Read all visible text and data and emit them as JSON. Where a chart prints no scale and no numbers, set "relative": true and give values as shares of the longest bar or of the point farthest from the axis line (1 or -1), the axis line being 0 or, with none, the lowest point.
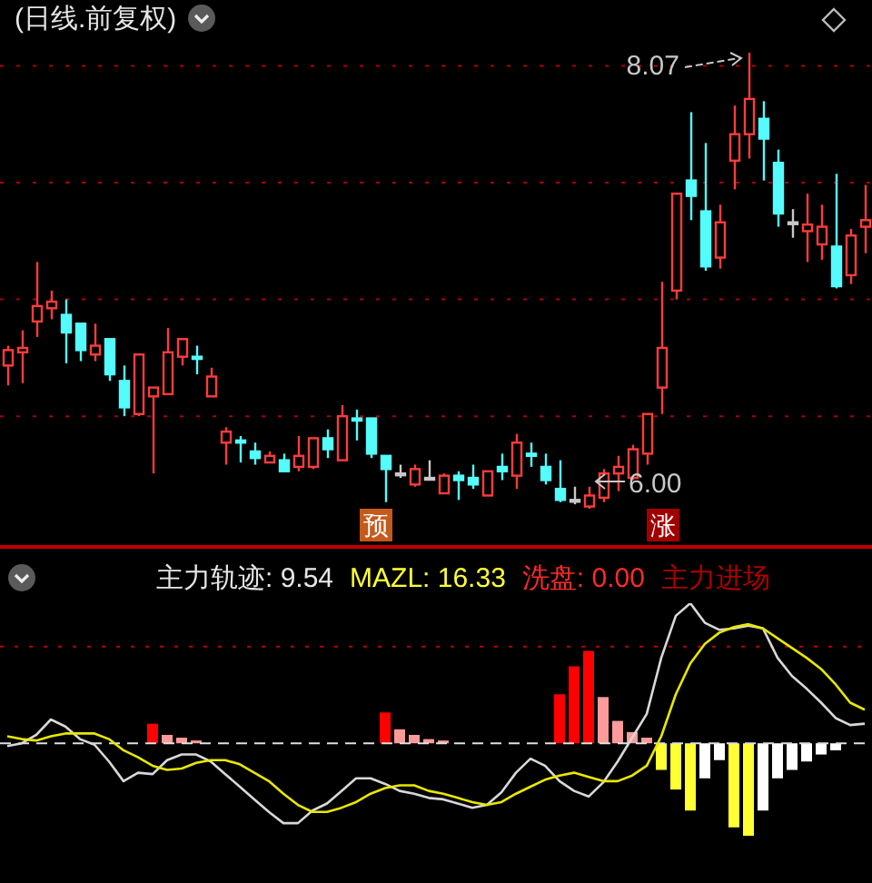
{
  "chart_data": [
    {
      "type": "candlestick",
      "title": "(日线.前复权)",
      "categories": [
        null,
        null,
        null,
        null,
        null,
        null,
        null,
        null,
        null,
        null,
        null,
        null,
        null,
        null,
        null,
        null,
        null,
        null,
        null,
        null,
        null,
        null,
        null,
        null,
        null,
        null,
        null,
        null,
        null,
        null,
        null,
        null,
        null,
        null,
        null,
        null,
        null,
        null,
        null,
        null,
        null,
        null,
        null,
        null,
        null,
        null,
        null,
        null,
        null,
        null,
        null,
        null,
        null,
        null,
        null,
        null,
        null,
        null,
        null,
        null
      ],
      "ohlc": [
        [
          6.65,
          6.74,
          6.56,
          6.72
        ],
        [
          6.71,
          6.81,
          6.57,
          6.73
        ],
        [
          6.85,
          7.12,
          6.78,
          6.92
        ],
        [
          6.91,
          6.99,
          6.86,
          6.94
        ],
        [
          6.88,
          6.95,
          6.66,
          6.8
        ],
        [
          6.84,
          6.84,
          6.67,
          6.72
        ],
        [
          6.7,
          6.84,
          6.67,
          6.74
        ],
        [
          6.77,
          6.77,
          6.58,
          6.61
        ],
        [
          6.58,
          6.65,
          6.42,
          6.46
        ],
        [
          6.43,
          6.7,
          6.42,
          6.7
        ],
        [
          6.51,
          6.55,
          6.16,
          6.55
        ],
        [
          6.52,
          6.82,
          6.52,
          6.71
        ],
        [
          6.69,
          6.77,
          6.65,
          6.77
        ],
        [
          6.69,
          6.74,
          6.61,
          6.68
        ],
        [
          6.51,
          6.64,
          6.51,
          6.6
        ],
        [
          6.3,
          6.37,
          6.2,
          6.35
        ],
        [
          6.31,
          6.33,
          6.21,
          6.3
        ],
        [
          6.26,
          6.3,
          6.2,
          6.23
        ],
        [
          6.21,
          6.26,
          6.21,
          6.24
        ],
        [
          6.22,
          6.25,
          6.17,
          6.17
        ],
        [
          6.19,
          6.33,
          6.17,
          6.24
        ],
        [
          6.19,
          6.32,
          6.18,
          6.32
        ],
        [
          6.32,
          6.36,
          6.23,
          6.27
        ],
        [
          6.22,
          6.47,
          6.22,
          6.42
        ],
        [
          6.41,
          6.45,
          6.31,
          6.4
        ],
        [
          6.41,
          6.41,
          6.23,
          6.25
        ],
        [
          6.24,
          6.24,
          6.03,
          6.18
        ],
        [
          6.16,
          6.2,
          6.14,
          6.16
        ],
        [
          6.11,
          6.2,
          6.1,
          6.18
        ],
        [
          6.14,
          6.22,
          6.13,
          6.14
        ],
        [
          6.07,
          6.16,
          6.07,
          6.15
        ],
        [
          6.15,
          6.17,
          6.04,
          6.13
        ],
        [
          6.14,
          6.2,
          6.09,
          6.11
        ],
        [
          6.06,
          6.17,
          6.06,
          6.17
        ],
        [
          6.19,
          6.25,
          6.13,
          6.17
        ],
        [
          6.15,
          6.34,
          6.09,
          6.3
        ],
        [
          6.25,
          6.3,
          6.19,
          6.24
        ],
        [
          6.19,
          6.25,
          6.11,
          6.13
        ],
        [
          6.09,
          6.22,
          6.03,
          6.04
        ],
        [
          6.04,
          6.1,
          6.02,
          6.04
        ],
        [
          6.01,
          6.1,
          6.0,
          6.06
        ],
        [
          6.05,
          6.18,
          6.03,
          6.16
        ],
        [
          6.16,
          6.24,
          6.08,
          6.19
        ],
        [
          6.14,
          6.29,
          6.13,
          6.27
        ],
        [
          6.25,
          6.43,
          6.2,
          6.43
        ],
        [
          6.55,
          7.03,
          6.43,
          6.73
        ],
        [
          6.99,
          7.43,
          6.95,
          7.43
        ],
        [
          7.49,
          7.8,
          7.31,
          7.42
        ],
        [
          7.35,
          7.66,
          7.08,
          7.1
        ],
        [
          7.14,
          7.38,
          7.09,
          7.3
        ],
        [
          7.58,
          7.83,
          7.45,
          7.7
        ],
        [
          7.7,
          8.07,
          7.59,
          7.86
        ],
        [
          7.77,
          7.85,
          7.49,
          7.68
        ],
        [
          7.57,
          7.63,
          7.28,
          7.34
        ],
        [
          7.3,
          7.36,
          7.23,
          7.3
        ],
        [
          7.26,
          7.43,
          7.12,
          7.29
        ],
        [
          7.2,
          7.38,
          7.13,
          7.28
        ],
        [
          7.19,
          7.52,
          7.0,
          7.01
        ],
        [
          7.06,
          7.27,
          7.02,
          7.24
        ],
        [
          7.28,
          7.47,
          7.16,
          7.31
        ]
      ],
      "colors": [
        "#ff3c3c",
        "#ff3c3c",
        "#ff3c3c",
        "#ff3c3c",
        "#54fcfc",
        "#54fcfc",
        "#ff3c3c",
        "#54fcfc",
        "#54fcfc",
        "#ff3c3c",
        "#ff3c3c",
        "#ff3c3c",
        "#ff3c3c",
        "#54fcfc",
        "#ff3c3c",
        "#ff3c3c",
        "#54fcfc",
        "#54fcfc",
        "#ff3c3c",
        "#54fcfc",
        "#ff3c3c",
        "#ff3c3c",
        "#54fcfc",
        "#ff3c3c",
        "#54fcfc",
        "#54fcfc",
        "#54fcfc",
        "#c8c8c8",
        "#ff3c3c",
        "#c8c8c8",
        "#ff3c3c",
        "#54fcfc",
        "#54fcfc",
        "#ff3c3c",
        "#54fcfc",
        "#ff3c3c",
        "#54fcfc",
        "#54fcfc",
        "#54fcfc",
        "#c8c8c8",
        "#ff3c3c",
        "#ff3c3c",
        "#ff3c3c",
        "#ff3c3c",
        "#ff3c3c",
        "#ff3c3c",
        "#ff3c3c",
        "#54fcfc",
        "#54fcfc",
        "#ff3c3c",
        "#ff3c3c",
        "#ff3c3c",
        "#54fcfc",
        "#54fcfc",
        "#c8c8c8",
        "#ff3c3c",
        "#ff3c3c",
        "#54fcfc",
        "#ff3c3c",
        "#ff3c3c"
      ],
      "yticks": [
        {
          "value": 6.42,
          "label": null
        },
        {
          "value": 6.95,
          "label": null
        },
        {
          "value": 7.48,
          "label": null
        },
        {
          "value": 8.01,
          "label": null
        }
      ],
      "grid": "y",
      "tick_labels": false,
      "annotations": [
        "8.07",
        "6.00",
        "预",
        "涨"
      ]
    },
    {
      "type": "line",
      "relative": true,
      "categories": [
        null,
        null,
        null,
        null,
        null,
        null,
        null,
        null,
        null,
        null,
        null,
        null,
        null,
        null,
        null,
        null,
        null,
        null,
        null,
        null,
        null,
        null,
        null,
        null,
        null,
        null,
        null,
        null,
        null,
        null,
        null,
        null,
        null,
        null,
        null,
        null,
        null,
        null,
        null,
        null,
        null,
        null,
        null,
        null,
        null,
        null,
        null,
        null,
        null,
        null,
        null,
        null,
        null,
        null,
        null,
        null,
        null,
        null,
        null,
        null
      ],
      "series": [
        {
          "type": "line",
          "color": "#d8d8d8",
          "values": [
            -0.02,
            0,
            0.06,
            0.17,
            0.12,
            0.03,
            -0.01,
            -0.13,
            -0.27,
            -0.21,
            -0.22,
            -0.12,
            -0.08,
            -0.08,
            -0.13,
            -0.22,
            -0.31,
            -0.4,
            -0.49,
            -0.57,
            -0.57,
            -0.48,
            -0.43,
            -0.34,
            -0.25,
            -0.25,
            -0.29,
            -0.34,
            -0.36,
            -0.39,
            -0.4,
            -0.43,
            -0.46,
            -0.44,
            -0.35,
            -0.21,
            -0.11,
            -0.16,
            -0.27,
            -0.34,
            -0.38,
            -0.28,
            -0.13,
            0.04,
            0.21,
            0.61,
            0.91,
            1,
            0.86,
            0.81,
            0.82,
            0.84,
            0.82,
            0.61,
            0.48,
            0.39,
            0.29,
            0.18,
            0.13,
            0.14
          ]
        },
        {
          "type": "line",
          "color": "#e8e800",
          "values": [
            0.05,
            0.03,
            0.02,
            0.05,
            0.07,
            0.07,
            0.07,
            0.03,
            -0.05,
            -0.1,
            -0.16,
            -0.19,
            -0.18,
            -0.14,
            -0.12,
            -0.12,
            -0.15,
            -0.21,
            -0.27,
            -0.36,
            -0.44,
            -0.49,
            -0.49,
            -0.46,
            -0.42,
            -0.36,
            -0.32,
            -0.3,
            -0.3,
            -0.34,
            -0.36,
            -0.39,
            -0.42,
            -0.44,
            -0.42,
            -0.36,
            -0.31,
            -0.26,
            -0.23,
            -0.21,
            -0.24,
            -0.27,
            -0.27,
            -0.23,
            -0.16,
            0.05,
            0.35,
            0.57,
            0.71,
            0.79,
            0.83,
            0.85,
            0.82,
            0.75,
            0.68,
            0.61,
            0.53,
            0.42,
            0.29,
            0.24
          ]
        },
        {
          "type": "bar",
          "values": [
            null,
            null,
            null,
            null,
            null,
            null,
            null,
            null,
            null,
            null,
            0.14,
            0.06,
            0.04,
            0.02,
            null,
            null,
            null,
            null,
            null,
            null,
            null,
            null,
            null,
            null,
            null,
            null,
            0.22,
            0.1,
            0.06,
            0.03,
            0.02,
            null,
            null,
            null,
            null,
            null,
            null,
            null,
            0.35,
            0.55,
            0.66,
            0.33,
            0.16,
            0.08,
            0.04,
            -0.19,
            -0.33,
            -0.48,
            -0.25,
            -0.12,
            -0.6,
            -0.66,
            -0.48,
            -0.25,
            -0.19,
            -0.13,
            -0.08,
            -0.05,
            null,
            null
          ],
          "colors": [
            null,
            null,
            null,
            null,
            null,
            null,
            null,
            null,
            null,
            null,
            "#ff0000",
            "#ff9a9a",
            "#ff9a9a",
            "#ff9a9a",
            null,
            null,
            null,
            null,
            null,
            null,
            null,
            null,
            null,
            null,
            null,
            null,
            "#ff0000",
            "#ff9a9a",
            "#ff9a9a",
            "#ff9a9a",
            "#ff9a9a",
            null,
            null,
            null,
            null,
            null,
            null,
            null,
            "#ff0000",
            "#ff0000",
            "#ff0000",
            "#ff9a9a",
            "#ff9a9a",
            "#ff9a9a",
            "#ff9a9a",
            "#ffff33",
            "#ffff33",
            "#ffff33",
            "#ffffff",
            "#ffffff",
            "#ffff33",
            "#ffff33",
            "#ffffff",
            "#ffffff",
            "#ffffff",
            "#ffffff",
            "#ffffff",
            "#ffffff",
            null,
            null
          ]
        }
      ],
      "ref_lines": [
        {
          "axis": "y",
          "value": 0.69,
          "color": "#c00000",
          "line_style": "dotted"
        },
        {
          "axis": "y",
          "value": 0,
          "color": "#e0e0e0",
          "line_style": "dashed"
        }
      ],
      "tick_labels": false,
      "annotations": [
        "主力轨迹: 9.54",
        "MAZL: 16.33",
        "洗盘: 0.00",
        "主力进场"
      ]
    }
  ]
}
